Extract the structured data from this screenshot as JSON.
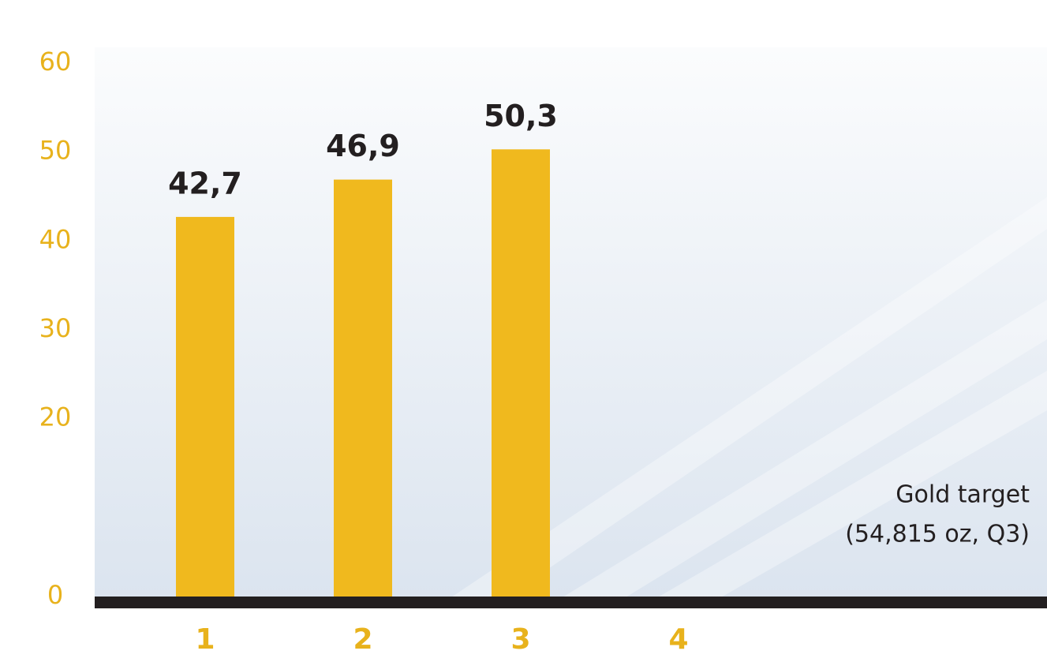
{
  "chart_data": {
    "type": "bar",
    "categories": [
      "1",
      "2",
      "3",
      "4"
    ],
    "values": [
      42.7,
      46.9,
      50.3,
      null
    ],
    "value_labels": [
      "42,7",
      "46,9",
      "50,3",
      null
    ],
    "color": "#f0b91e",
    "ylim": [
      0,
      60
    ],
    "yticks": [
      0,
      20,
      30,
      40,
      50,
      60
    ],
    "annotation": [
      "Gold target",
      "(54,815 oz, Q3)"
    ]
  }
}
